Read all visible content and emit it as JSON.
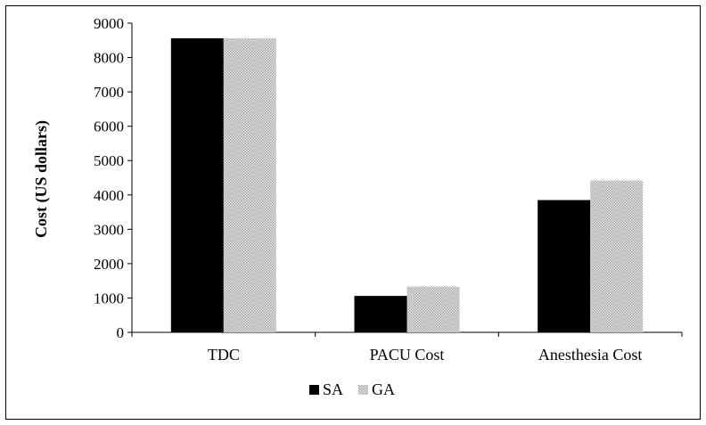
{
  "chart_data": {
    "type": "bar",
    "categories": [
      "TDC",
      "PACU Cost",
      "Anesthesia Cost"
    ],
    "series": [
      {
        "name": "SA",
        "values": [
          8560,
          1060,
          3850
        ],
        "color": "#000000",
        "pattern": "solid"
      },
      {
        "name": "GA",
        "values": [
          8560,
          1330,
          4420
        ],
        "color": "#bdbdbd",
        "pattern": "checker"
      }
    ],
    "title": "",
    "xlabel": "",
    "ylabel": "Cost (US dollars)",
    "ylim": [
      0,
      9000
    ],
    "yticks": [
      0,
      1000,
      2000,
      3000,
      4000,
      5000,
      6000,
      7000,
      8000,
      9000
    ],
    "grid": false,
    "legend_position": "bottom"
  }
}
